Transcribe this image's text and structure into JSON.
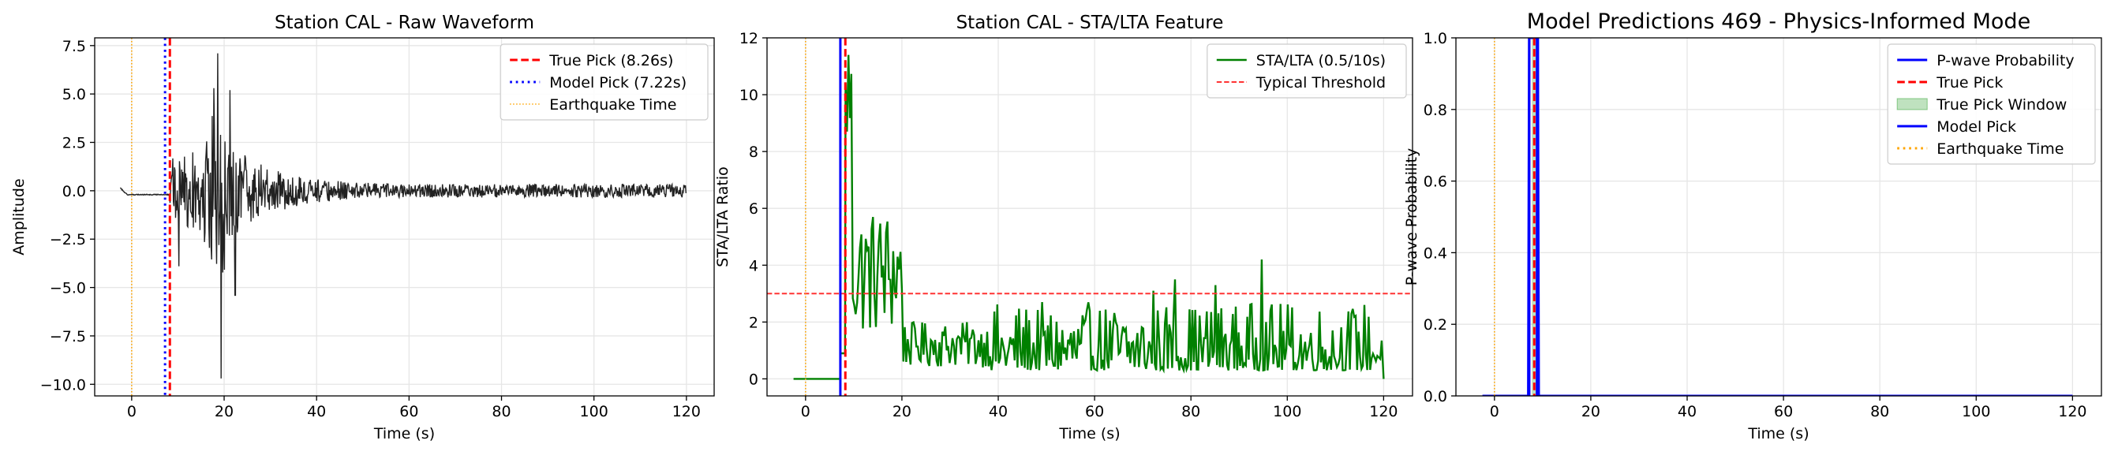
{
  "chart_data": [
    {
      "type": "line",
      "title": "Station CAL - Raw Waveform",
      "xlabel": "Time (s)",
      "ylabel": "Amplitude",
      "xlim": [
        -8,
        126
      ],
      "ylim": [
        -10.6,
        7.9
      ],
      "xticks": [
        0,
        20,
        40,
        60,
        80,
        100,
        120
      ],
      "xtick_labels": [
        "0",
        "20",
        "40",
        "60",
        "80",
        "100",
        "120"
      ],
      "yticks": [
        -10.0,
        -7.5,
        -5.0,
        -2.5,
        0.0,
        2.5,
        5.0,
        7.5
      ],
      "ytick_labels": [
        "−10.0",
        "−7.5",
        "−5.0",
        "−2.5",
        "0.0",
        "2.5",
        "5.0",
        "7.5"
      ],
      "grid": true,
      "legend_position": "top-right",
      "series": [
        {
          "name": "",
          "kind": "trace",
          "color": "#222222",
          "envelope": {
            "t_start": -2.5,
            "t_onset": 8.3,
            "t_end": 120,
            "pre_level": -0.2,
            "peak": 7.1,
            "trough": -9.7,
            "tail_amp": 0.35
          }
        }
      ],
      "vlines": [
        {
          "name": "True Pick (8.26s)",
          "x": 8.26,
          "color": "#ff0000",
          "style": "dashed",
          "width": 3
        },
        {
          "name": "Model Pick (7.22s)",
          "x": 7.22,
          "color": "#0000ff",
          "style": "dotted",
          "width": 3
        },
        {
          "name": "Earthquake Time",
          "x": 0,
          "color": "#ffa500",
          "style": "dotted",
          "width": 1.6
        }
      ]
    },
    {
      "type": "line",
      "title": "Station CAL - STA/LTA Feature",
      "xlabel": "Time (s)",
      "ylabel": "STA/LTA Ratio",
      "xlim": [
        -8,
        126
      ],
      "ylim": [
        -0.6,
        12
      ],
      "xticks": [
        0,
        20,
        40,
        60,
        80,
        100,
        120
      ],
      "xtick_labels": [
        "0",
        "20",
        "40",
        "60",
        "80",
        "100",
        "120"
      ],
      "yticks": [
        0,
        2,
        4,
        6,
        8,
        10,
        12
      ],
      "ytick_labels": [
        "0",
        "2",
        "4",
        "6",
        "8",
        "10",
        "12"
      ],
      "grid": true,
      "legend_position": "top-right",
      "series": [
        {
          "name": "STA/LTA (0.5/10s)",
          "kind": "ratio",
          "color": "#008000",
          "envelope": {
            "t_start": -2.5,
            "t_onset": 8.3,
            "t_end": 120,
            "max": 11.4,
            "base": 0.8
          }
        }
      ],
      "hlines": [
        {
          "name": "Typical Threshold",
          "y": 3,
          "color": "#ff3333",
          "style": "dashed",
          "width": 2
        }
      ],
      "vlines": [
        {
          "name": "",
          "x": 0,
          "color": "#ffa500",
          "style": "dotted",
          "width": 1.6
        },
        {
          "name": "",
          "x": 7.22,
          "color": "#0000ff",
          "style": "solid",
          "width": 3
        },
        {
          "name": "",
          "x": 8.26,
          "color": "#ff0000",
          "style": "dashed",
          "width": 3
        }
      ]
    },
    {
      "type": "line",
      "title": "Model Predictions 469 - Physics-Informed Mode",
      "xlabel": "Time (s)",
      "ylabel": "P-wave Probability",
      "xlim": [
        -8,
        126
      ],
      "ylim": [
        0,
        1.0
      ],
      "xticks": [
        0,
        20,
        40,
        60,
        80,
        100,
        120
      ],
      "xtick_labels": [
        "0",
        "20",
        "40",
        "60",
        "80",
        "100",
        "120"
      ],
      "yticks": [
        0.0,
        0.2,
        0.4,
        0.6,
        0.8,
        1.0
      ],
      "ytick_labels": [
        "0.0",
        "0.2",
        "0.4",
        "0.6",
        "0.8",
        "1.0"
      ],
      "grid": true,
      "legend_position": "top-right",
      "series": [
        {
          "name": "P-wave Probability",
          "kind": "prob",
          "color": "#0000ff",
          "x": [
            -2.5,
            7.0,
            7.2,
            9.0,
            9.2,
            120
          ],
          "y": [
            0,
            0,
            1.0,
            1.0,
            0,
            0
          ]
        },
        {
          "name": "True Pick",
          "kind": "legend-only",
          "color": "#ff0000",
          "style": "dashed"
        },
        {
          "name": "True Pick Window",
          "kind": "span",
          "color": "#2ca02c",
          "x0": 7.76,
          "x1": 8.76
        },
        {
          "name": "Model Pick",
          "kind": "legend-only",
          "color": "#0000ff",
          "style": "solid"
        },
        {
          "name": "Earthquake Time",
          "kind": "legend-only",
          "color": "#ffa500",
          "style": "dotted"
        }
      ],
      "vlines": [
        {
          "name": "",
          "x": 0,
          "color": "#ffa500",
          "style": "dotted",
          "width": 1.6
        },
        {
          "name": "",
          "x": 7.22,
          "color": "#0000ff",
          "style": "solid",
          "width": 3
        },
        {
          "name": "",
          "x": 8.26,
          "color": "#ff0000",
          "style": "dashed",
          "width": 3
        },
        {
          "name": "",
          "x": 8.9,
          "color": "#0000ff",
          "style": "solid",
          "width": 4
        }
      ]
    }
  ]
}
